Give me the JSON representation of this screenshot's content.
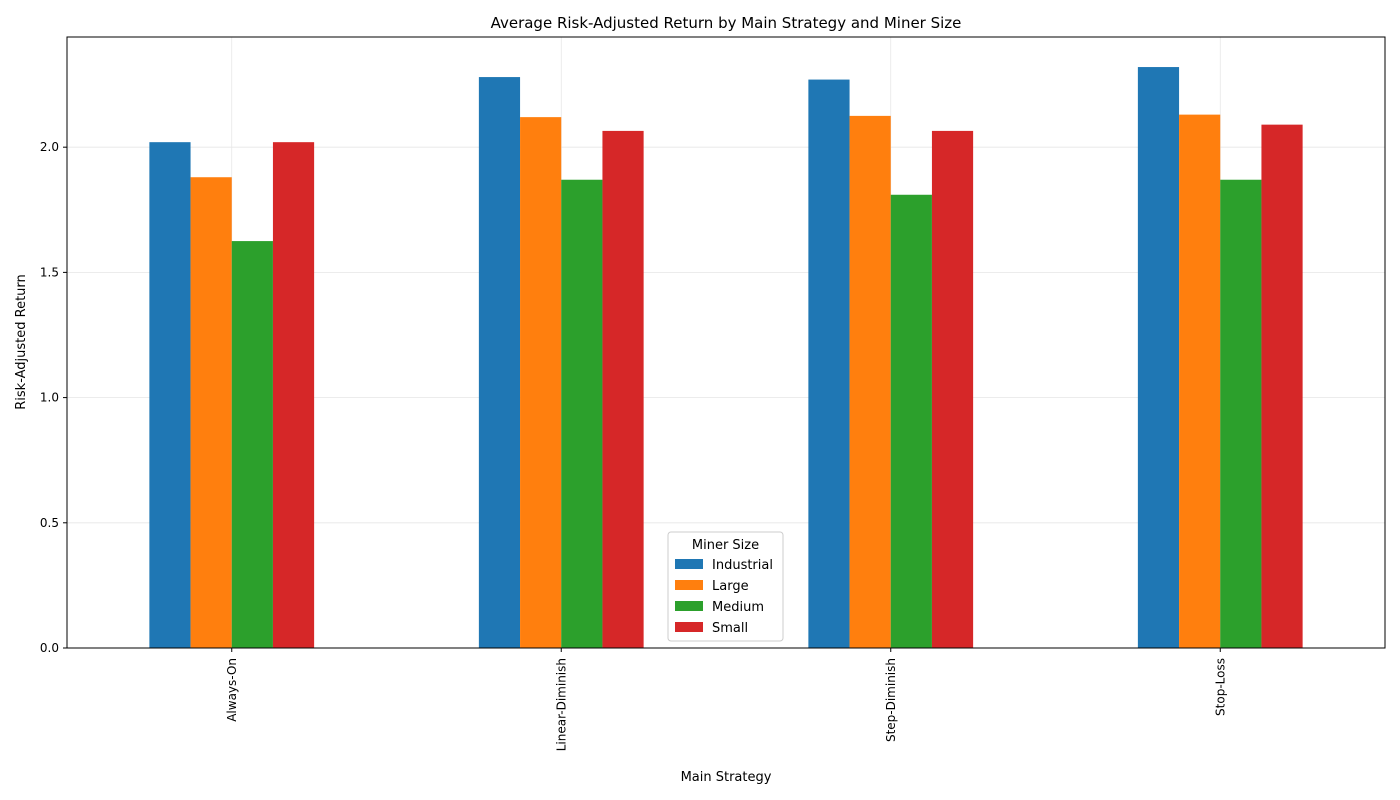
{
  "chart_data": {
    "type": "bar",
    "title": "Average Risk-Adjusted Return by Main Strategy and Miner Size",
    "xlabel": "Main Strategy",
    "ylabel": "Risk-Adjusted Return",
    "categories": [
      "Always-On",
      "Linear-Diminish",
      "Step-Diminish",
      "Stop-Loss"
    ],
    "series": [
      {
        "name": "Industrial",
        "color": "#1f77b4",
        "values": [
          2.02,
          2.28,
          2.27,
          2.32
        ]
      },
      {
        "name": "Large",
        "color": "#ff7f0e",
        "values": [
          1.88,
          2.12,
          2.125,
          2.13
        ]
      },
      {
        "name": "Medium",
        "color": "#2ca02c",
        "values": [
          1.625,
          1.87,
          1.81,
          1.87
        ]
      },
      {
        "name": "Small",
        "color": "#d62728",
        "values": [
          2.02,
          2.065,
          2.065,
          2.09
        ]
      }
    ],
    "ylim": [
      0,
      2.44
    ],
    "yticks": [
      "0.0",
      "0.5",
      "1.0",
      "1.5",
      "2.0"
    ],
    "ytick_values": [
      0,
      0.5,
      1.0,
      1.5,
      2.0
    ],
    "grid": true,
    "legend": {
      "title": "Miner Size",
      "placement": "lower-center"
    }
  }
}
